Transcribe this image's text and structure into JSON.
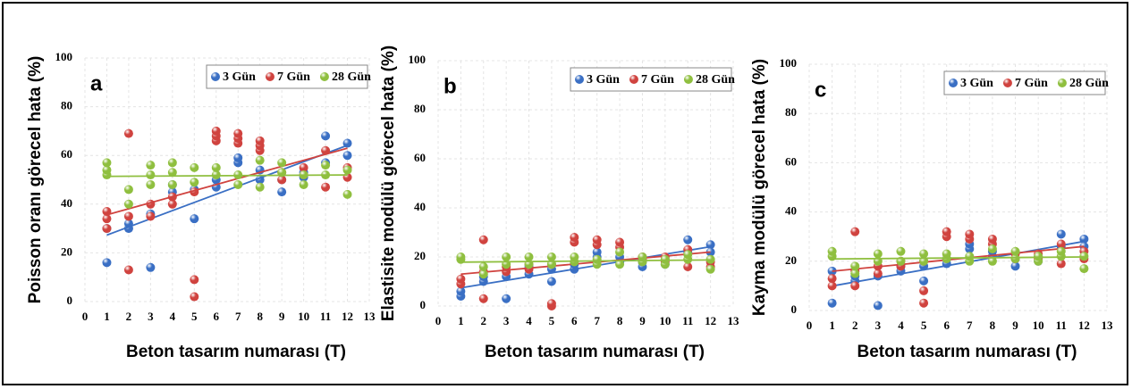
{
  "chart_data": [
    {
      "type": "scatter",
      "annotation": "a",
      "xlabel": "Beton tasarım numarası (T)",
      "ylabel": "Poisson oranı görecel hata (%)",
      "xlim": [
        0,
        13
      ],
      "xticks": [
        0,
        1,
        2,
        3,
        4,
        5,
        6,
        7,
        8,
        9,
        10,
        11,
        12,
        13
      ],
      "ylim": [
        0,
        100
      ],
      "yticks": [
        0,
        20,
        40,
        60,
        80,
        100
      ],
      "grid": true,
      "legend": "upper right",
      "trendline": true,
      "series": [
        {
          "name": "3 Gün",
          "color": "#3a6fc4",
          "x": [
            1,
            1,
            2,
            2,
            3,
            3,
            4,
            4,
            5,
            5,
            6,
            6,
            7,
            7,
            8,
            8,
            9,
            9,
            10,
            10,
            11,
            11,
            12,
            12
          ],
          "values": [
            30,
            16,
            30,
            32,
            14,
            36,
            45,
            48,
            34,
            46,
            47,
            50,
            57,
            59,
            50,
            54,
            45,
            50,
            51,
            53,
            68,
            57,
            65,
            60
          ]
        },
        {
          "name": "7 Gün",
          "color": "#d0433f",
          "x": [
            1,
            1,
            1,
            2,
            2,
            2,
            3,
            3,
            4,
            4,
            5,
            5,
            5,
            6,
            6,
            6,
            7,
            7,
            7,
            8,
            8,
            8,
            9,
            9,
            10,
            10,
            11,
            11,
            12,
            12
          ],
          "values": [
            30,
            34,
            37,
            69,
            13,
            35,
            35,
            40,
            40,
            43,
            2,
            9,
            45,
            66,
            68,
            70,
            65,
            67,
            69,
            62,
            64,
            66,
            50,
            53,
            52,
            55,
            47,
            62,
            51,
            55
          ]
        },
        {
          "name": "28 Gün",
          "color": "#8fbf3f",
          "x": [
            1,
            1,
            1,
            2,
            2,
            3,
            3,
            3,
            4,
            4,
            4,
            5,
            5,
            6,
            6,
            7,
            7,
            8,
            8,
            9,
            9,
            10,
            10,
            11,
            11,
            12,
            12
          ],
          "values": [
            52,
            54,
            57,
            40,
            46,
            48,
            52,
            56,
            48,
            53,
            57,
            49,
            55,
            52,
            55,
            48,
            52,
            47,
            58,
            53,
            57,
            48,
            52,
            52,
            56,
            44,
            54
          ]
        }
      ]
    },
    {
      "type": "scatter",
      "annotation": "b",
      "xlabel": "Beton tasarım numarası (T)",
      "ylabel": "Elastisite modülü görecel hata (%)",
      "xlim": [
        0,
        13
      ],
      "xticks": [
        0,
        1,
        2,
        3,
        4,
        5,
        6,
        7,
        8,
        9,
        10,
        11,
        12,
        13
      ],
      "ylim": [
        0,
        100
      ],
      "yticks": [
        0,
        20,
        40,
        60,
        80,
        100
      ],
      "grid": true,
      "legend": "upper right",
      "trendline": true,
      "series": [
        {
          "name": "3 Gün",
          "color": "#3a6fc4",
          "x": [
            1,
            1,
            2,
            2,
            3,
            3,
            4,
            4,
            5,
            5,
            6,
            6,
            7,
            7,
            8,
            8,
            9,
            9,
            10,
            10,
            11,
            11,
            12,
            12
          ],
          "values": [
            4,
            6,
            10,
            12,
            3,
            12,
            13,
            16,
            10,
            15,
            15,
            17,
            20,
            22,
            18,
            20,
            16,
            18,
            17,
            19,
            27,
            22,
            25,
            22
          ]
        },
        {
          "name": "7 Gün",
          "color": "#d0433f",
          "x": [
            1,
            1,
            2,
            2,
            2,
            3,
            3,
            4,
            4,
            5,
            5,
            5,
            6,
            6,
            7,
            7,
            8,
            8,
            9,
            9,
            10,
            10,
            11,
            11,
            12,
            12
          ],
          "values": [
            9,
            11,
            27,
            3,
            14,
            14,
            16,
            15,
            17,
            0,
            1,
            17,
            26,
            28,
            25,
            27,
            24,
            26,
            19,
            20,
            18,
            20,
            16,
            23,
            16,
            18
          ]
        },
        {
          "name": "28 Gün",
          "color": "#8fbf3f",
          "x": [
            1,
            1,
            2,
            2,
            3,
            3,
            4,
            4,
            5,
            5,
            6,
            6,
            7,
            7,
            8,
            8,
            9,
            9,
            10,
            10,
            11,
            11,
            12,
            12
          ],
          "values": [
            19,
            20,
            13,
            16,
            17,
            20,
            17,
            20,
            17,
            20,
            18,
            20,
            17,
            19,
            17,
            22,
            18,
            20,
            17,
            19,
            19,
            21,
            15,
            19
          ]
        }
      ]
    },
    {
      "type": "scatter",
      "annotation": "c",
      "xlabel": "Beton tasarım numarası (T)",
      "ylabel": "Kayma modülü görecel hata (%)",
      "xlim": [
        0,
        13
      ],
      "xticks": [
        0,
        1,
        2,
        3,
        4,
        5,
        6,
        7,
        8,
        9,
        10,
        11,
        12,
        13
      ],
      "ylim": [
        0,
        100
      ],
      "yticks": [
        0,
        20,
        40,
        60,
        80,
        100
      ],
      "grid": true,
      "legend": "upper right",
      "trendline": true,
      "series": [
        {
          "name": "3 Gün",
          "color": "#3a6fc4",
          "x": [
            1,
            1,
            2,
            2,
            3,
            3,
            4,
            4,
            5,
            5,
            6,
            6,
            7,
            7,
            8,
            8,
            9,
            9,
            10,
            10,
            11,
            11,
            12,
            12
          ],
          "values": [
            3,
            16,
            12,
            14,
            2,
            14,
            16,
            18,
            12,
            18,
            19,
            21,
            25,
            27,
            22,
            24,
            18,
            21,
            20,
            22,
            31,
            26,
            29,
            26
          ]
        },
        {
          "name": "7 Gün",
          "color": "#d0433f",
          "x": [
            1,
            1,
            2,
            2,
            2,
            3,
            3,
            4,
            4,
            5,
            5,
            5,
            6,
            6,
            7,
            7,
            8,
            8,
            9,
            9,
            10,
            10,
            11,
            11,
            12,
            12
          ],
          "values": [
            10,
            13,
            32,
            10,
            16,
            15,
            18,
            18,
            20,
            3,
            8,
            20,
            30,
            32,
            29,
            31,
            27,
            29,
            21,
            23,
            21,
            23,
            19,
            27,
            21,
            24
          ]
        },
        {
          "name": "28 Gün",
          "color": "#8fbf3f",
          "x": [
            1,
            1,
            2,
            2,
            3,
            3,
            4,
            4,
            5,
            5,
            6,
            6,
            7,
            7,
            8,
            8,
            9,
            9,
            10,
            10,
            11,
            11,
            12,
            12
          ],
          "values": [
            22,
            24,
            15,
            18,
            20,
            23,
            20,
            24,
            20,
            23,
            21,
            23,
            20,
            22,
            20,
            25,
            21,
            24,
            20,
            22,
            22,
            24,
            17,
            22
          ]
        }
      ]
    }
  ]
}
